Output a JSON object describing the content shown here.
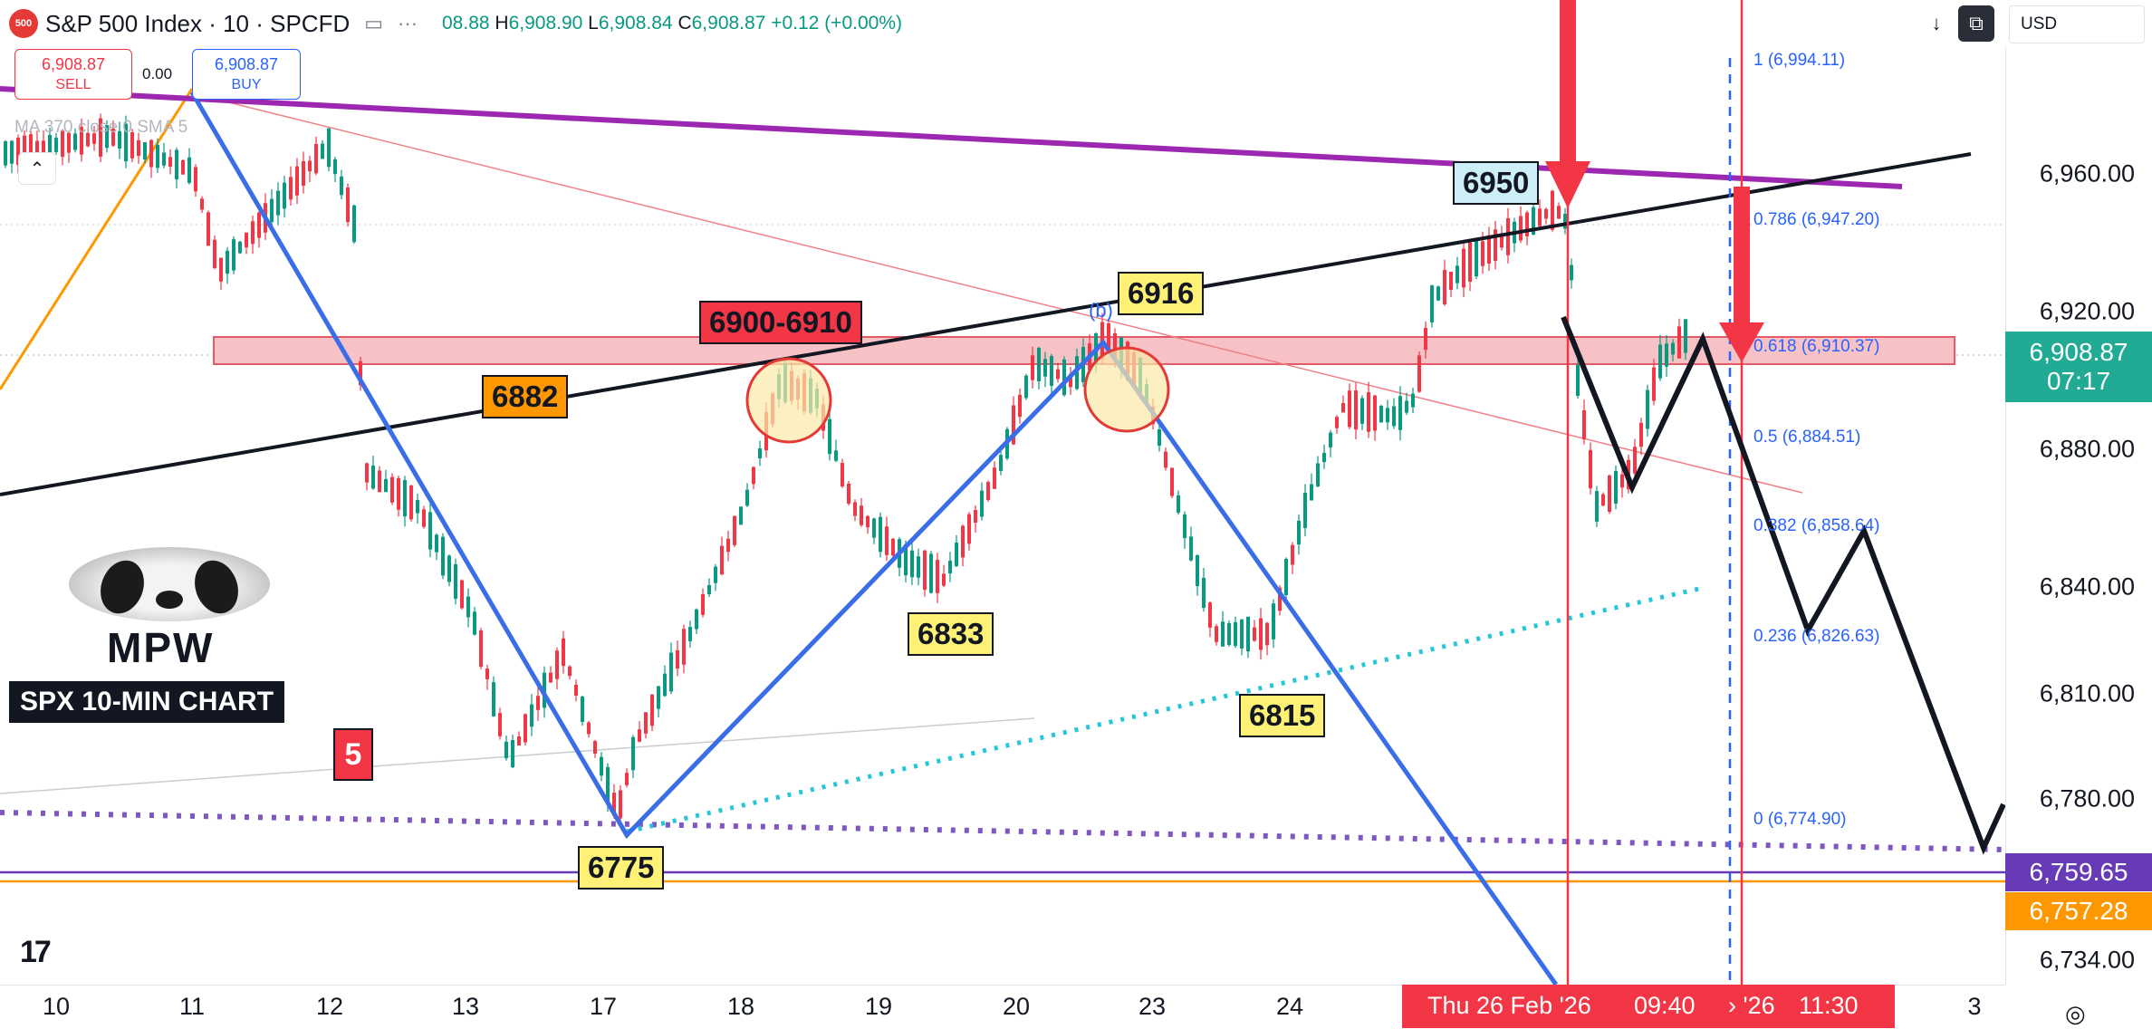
{
  "header": {
    "logo_text": "500",
    "title": "S&P 500 Index · 10 · SPCFD",
    "ohlc": {
      "o_value": "08.88",
      "h_label": "H",
      "h_value": "6,908.90",
      "l_label": "L",
      "l_value": "6,908.84",
      "c_label": "C",
      "c_value": "6,908.87",
      "change": "+0.12 (+0.00%)"
    },
    "icons": [
      "chart-style-icon",
      "more-icon"
    ]
  },
  "trade": {
    "sell_price": "6,908.87",
    "sell_label": "SELL",
    "spread": "0.00",
    "buy_price": "6,908.87",
    "buy_label": "BUY"
  },
  "indicator": {
    "ma_label": "MA 370 close 0 SMA 5"
  },
  "currency": "USD",
  "price_axis": {
    "ticks": [
      "6,960.00",
      "6,920.00",
      "6,880.00",
      "6,840.00",
      "6,810.00",
      "6,780.00",
      "6,734.00"
    ],
    "last_price": "6,908.87",
    "countdown": "07:17",
    "tag_purple": "6,759.65",
    "tag_orange": "6,757.28",
    "colors": {
      "last": "#22ab94",
      "purple": "#673ab7",
      "orange": "#ff9800"
    }
  },
  "time_axis": {
    "ticks": [
      "10",
      "11",
      "12",
      "13",
      "17",
      "18",
      "19",
      "20",
      "23",
      "24",
      "3"
    ],
    "highlight_date": "Thu 26 Feb '26",
    "highlight_time": "09:40",
    "highlight_partial": "› '26",
    "highlight_time2": "11:30"
  },
  "annotations": {
    "label_6950": "6950",
    "label_6916": "6916",
    "label_zone": "6900-6910",
    "label_6882": "6882",
    "label_6833": "6833",
    "label_6815": "6815",
    "label_6775": "6775",
    "wave_b": "(b)"
  },
  "fib_levels": [
    {
      "label": "1 (6,994.11)"
    },
    {
      "label": "0.786 (6,947.20)"
    },
    {
      "label": "0.618 (6,910.37)"
    },
    {
      "label": "0.5 (6,884.51)"
    },
    {
      "label": "0.382 (6,858.64)"
    },
    {
      "label": "0.236 (6,826.63)"
    },
    {
      "label": "0 (6,774.90)"
    }
  ],
  "branding": {
    "mpw": "MPW",
    "chart_label": "SPX 10-MIN CHART",
    "wave_count": "5",
    "tv_logo": "17"
  }
}
